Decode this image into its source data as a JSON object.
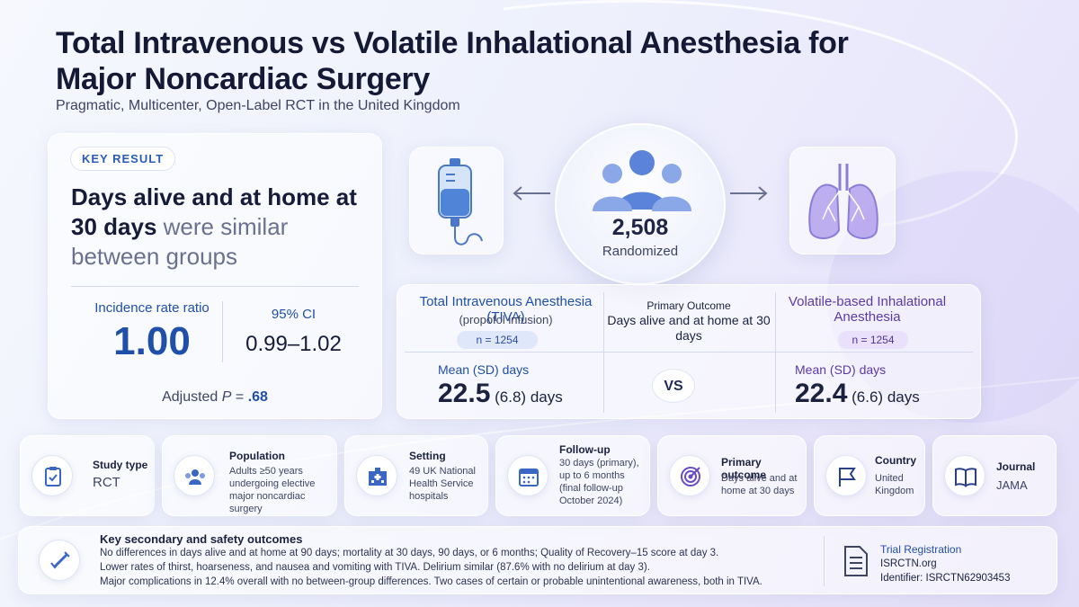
{
  "header": {
    "title": "Total Intravenous vs Volatile Inhalational Anesthesia for Major Noncardiac Surgery",
    "subtitle": "Pragmatic, Multicenter, Open-Label RCT in the United Kingdom"
  },
  "key_result": {
    "badge": "KEY RESULT",
    "headline_bold": "Days alive and at home at 30 days",
    "headline_rest": " were similar between groups",
    "irr_label": "Incidence rate ratio",
    "irr_value": "1.00",
    "ci_label": "95% CI",
    "ci_value": "0.99–1.02",
    "p_prefix": "Adjusted ",
    "p_symbol": "P",
    "p_eq": " = ",
    "p_value": ".68"
  },
  "randomized": {
    "n": "2,508",
    "label": "Randomized"
  },
  "comparison": {
    "tiva": {
      "title": "Total Intravenous Anesthesia (TIVA)",
      "subtitle": "(propofol infusion)",
      "n": "n = 1254",
      "mean_label": "Mean (SD) days",
      "mean_value": "22.5",
      "sd": "(6.8)",
      "unit": "days"
    },
    "primary": {
      "label": "Primary Outcome",
      "value": "Days alive and at home at 30 days",
      "vs": "VS"
    },
    "volatile": {
      "title": "Volatile-based Inhalational Anesthesia",
      "n": "n = 1254",
      "mean_label": "Mean (SD) days",
      "mean_value": "22.4",
      "sd": "(6.6)",
      "unit": "days"
    }
  },
  "cards": [
    {
      "label": "Study type",
      "value": "RCT",
      "icon": "clipboard-check-icon"
    },
    {
      "label": "Population",
      "value": "Adults ≥50 years undergoing elective major noncardiac surgery",
      "icon": "people-group-icon"
    },
    {
      "label": "Setting",
      "value": "49 UK National Health Service hospitals",
      "icon": "hospital-icon"
    },
    {
      "label": "Follow-up",
      "value": "30 days (primary), up to 6 months (final follow-up October 2024)",
      "icon": "calendar-icon"
    },
    {
      "label": "Primary outcome",
      "value": "Days alive and at home at 30 days",
      "icon": "target-icon"
    },
    {
      "label": "Country",
      "value": "United Kingdom",
      "icon": "flag-icon"
    },
    {
      "label": "Journal",
      "value": "JAMA",
      "icon": "book-icon"
    }
  ],
  "secondary": {
    "title": "Key secondary and safety outcomes",
    "lines": [
      "No differences in days alive and at home at 90 days; mortality at 30 days, 90 days, or 6 months; Quality of Recovery–15 score at day 3.",
      "Lower rates of thirst, hoarseness, and nausea and vomiting with TIVA. Delirium similar (87.6% with no delirium at day 3).",
      "Major complications in 12.4% overall with no between-group differences. Two cases of certain or probable unintentional awareness, both in TIVA."
    ]
  },
  "registration": {
    "title": "Trial Registration",
    "site": "ISRCTN.org",
    "identifier": "Identifier: ISRCTN62903453"
  },
  "colors": {
    "accent_blue": "#1f4fa8",
    "accent_purple": "#5a3aa8",
    "text_dark": "#141a36"
  }
}
